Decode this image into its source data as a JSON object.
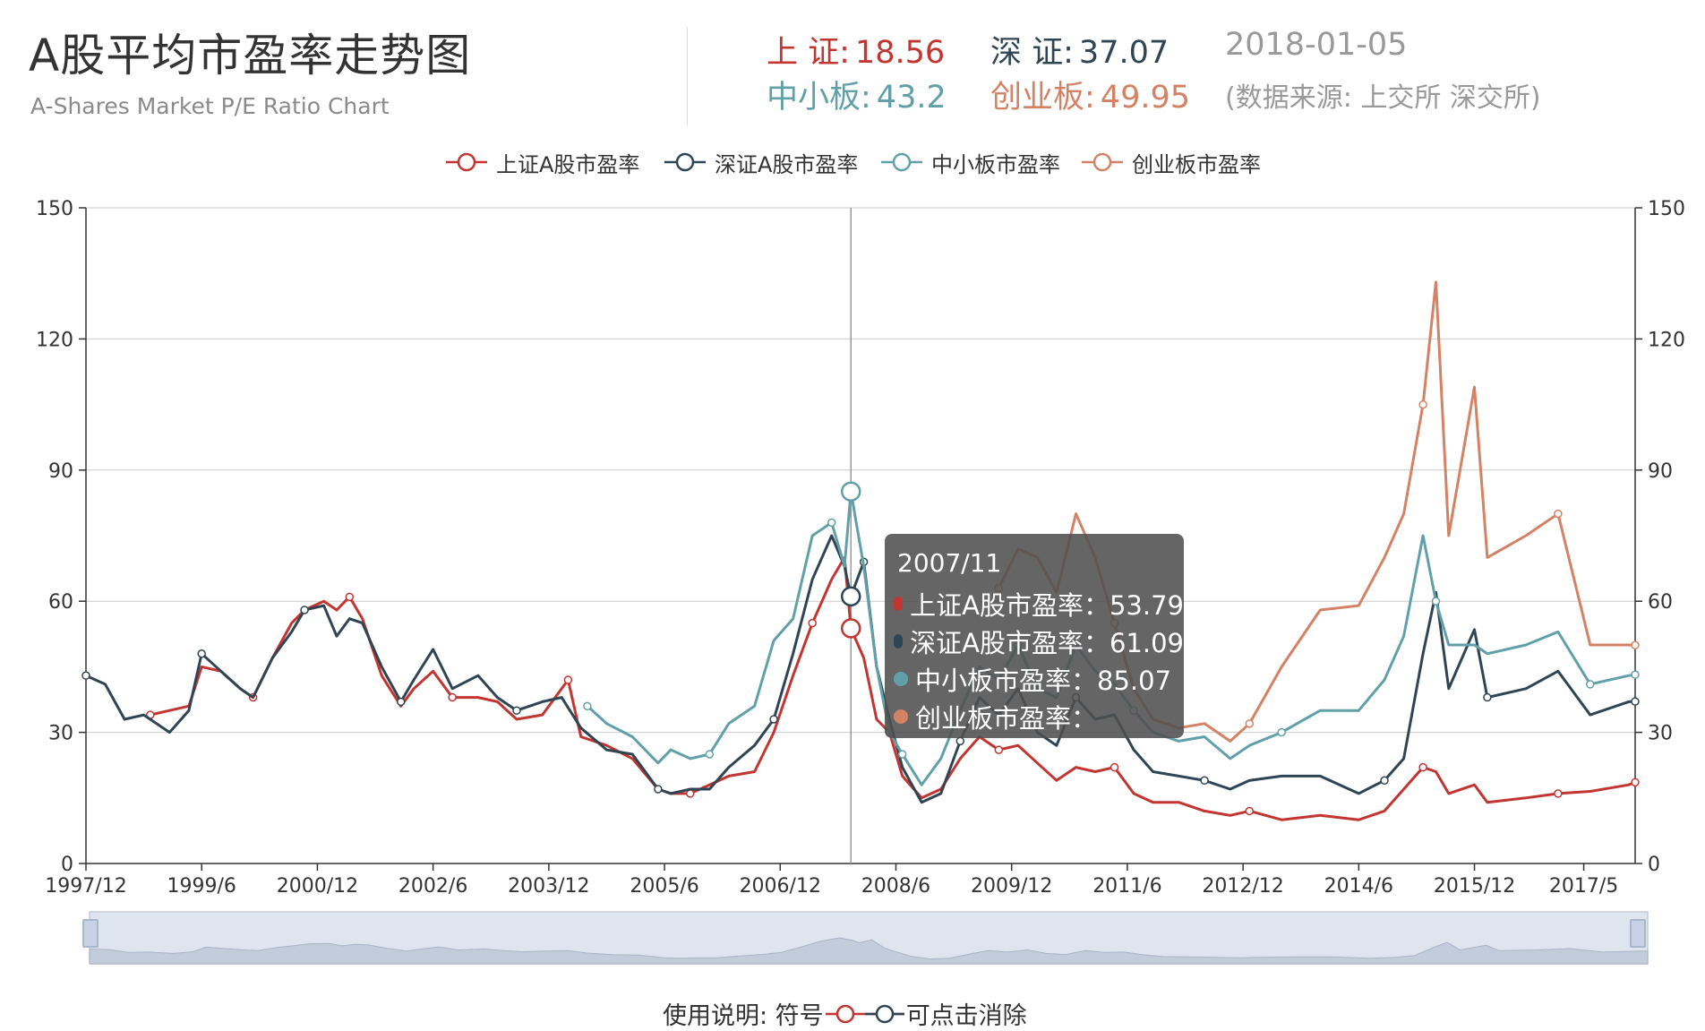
{
  "header": {
    "title": "A股平均市盈率走势图",
    "subtitle": "A-Shares Market P/E Ratio Chart",
    "sh_label": "上 证:",
    "sh_value": "18.56",
    "sz_label": "深 证:",
    "sz_value": "37.07",
    "sme_label": "中小板:",
    "sme_value": "43.2",
    "gem_label": "创业板:",
    "gem_value": "49.95",
    "date": "2018-01-05",
    "source": "(数据来源: 上交所 深交所)"
  },
  "legend": [
    "上证A股市盈率",
    "深证A股市盈率",
    "中小板市盈率",
    "创业板市盈率"
  ],
  "colors": {
    "sh": "#c23531",
    "sz": "#2f4554",
    "sme": "#61a0a8",
    "gem": "#d48265"
  },
  "tooltip": {
    "title": "2007/11",
    "rows": [
      {
        "label": "上证A股市盈率：53.79",
        "color": "#c23531"
      },
      {
        "label": "深证A股市盈率：61.09",
        "color": "#2f4554"
      },
      {
        "label": "中小板市盈率：85.07",
        "color": "#61a0a8"
      },
      {
        "label": "创业板市盈率：",
        "color": "#d48265"
      }
    ]
  },
  "usage": {
    "prefix": "使用说明:  符号",
    "suffix": "可点击消除"
  },
  "chart_data": {
    "type": "line",
    "x_range": [
      "1997/12",
      "2018/01"
    ],
    "x_ticks": [
      "1997/12",
      "1999/6",
      "2000/12",
      "2002/6",
      "2003/12",
      "2005/6",
      "2006/12",
      "2008/6",
      "2009/12",
      "2011/6",
      "2012/12",
      "2014/6",
      "2015/12",
      "2017/5"
    ],
    "ylim": [
      0,
      150
    ],
    "y_ticks": [
      0,
      30,
      60,
      90,
      120,
      150
    ],
    "y_axis_right": true,
    "grid": "horizontal",
    "legend_position": "top-center",
    "cursor_at": "2007/11",
    "series": [
      {
        "name": "上证A股市盈率",
        "points": [
          [
            "1998/10",
            34
          ],
          [
            "1999/1",
            35
          ],
          [
            "1999/4",
            36
          ],
          [
            "1999/6",
            45
          ],
          [
            "1999/9",
            44
          ],
          [
            "1999/12",
            40
          ],
          [
            "2000/2",
            38
          ],
          [
            "2000/5",
            47
          ],
          [
            "2000/8",
            55
          ],
          [
            "2000/10",
            58
          ],
          [
            "2001/1",
            60
          ],
          [
            "2001/3",
            58
          ],
          [
            "2001/5",
            61
          ],
          [
            "2001/7",
            56
          ],
          [
            "2001/10",
            43
          ],
          [
            "2002/1",
            36
          ],
          [
            "2002/3",
            40
          ],
          [
            "2002/6",
            44
          ],
          [
            "2002/9",
            38
          ],
          [
            "2003/1",
            38
          ],
          [
            "2003/4",
            37
          ],
          [
            "2003/7",
            33
          ],
          [
            "2003/11",
            34
          ],
          [
            "2004/2",
            40
          ],
          [
            "2004/3",
            42
          ],
          [
            "2004/5",
            29
          ],
          [
            "2004/9",
            27
          ],
          [
            "2005/1",
            24
          ],
          [
            "2005/5",
            17
          ],
          [
            "2005/7",
            16
          ],
          [
            "2005/10",
            16
          ],
          [
            "2006/1",
            18
          ],
          [
            "2006/4",
            20
          ],
          [
            "2006/8",
            21
          ],
          [
            "2006/11",
            30
          ],
          [
            "2007/2",
            43
          ],
          [
            "2007/5",
            55
          ],
          [
            "2007/8",
            65
          ],
          [
            "2007/10",
            70
          ],
          [
            "2007/11",
            53.8
          ],
          [
            "2008/1",
            47
          ],
          [
            "2008/3",
            33
          ],
          [
            "2008/5",
            30
          ],
          [
            "2008/7",
            20
          ],
          [
            "2008/10",
            15
          ],
          [
            "2009/1",
            17
          ],
          [
            "2009/4",
            24
          ],
          [
            "2009/7",
            29
          ],
          [
            "2009/10",
            26
          ],
          [
            "2010/1",
            27
          ],
          [
            "2010/4",
            23
          ],
          [
            "2010/7",
            19
          ],
          [
            "2010/10",
            22
          ],
          [
            "2011/1",
            21
          ],
          [
            "2011/4",
            22
          ],
          [
            "2011/7",
            16
          ],
          [
            "2011/10",
            14
          ],
          [
            "2012/2",
            14
          ],
          [
            "2012/6",
            12
          ],
          [
            "2012/10",
            11
          ],
          [
            "2013/1",
            12
          ],
          [
            "2013/6",
            10
          ],
          [
            "2013/12",
            11
          ],
          [
            "2014/6",
            10
          ],
          [
            "2014/10",
            12
          ],
          [
            "2015/1",
            17
          ],
          [
            "2015/4",
            22
          ],
          [
            "2015/6",
            21
          ],
          [
            "2015/8",
            16
          ],
          [
            "2015/12",
            18
          ],
          [
            "2016/2",
            14
          ],
          [
            "2016/8",
            15
          ],
          [
            "2017/1",
            16
          ],
          [
            "2017/6",
            16.5
          ],
          [
            "2017/12",
            18
          ],
          [
            "2018/1",
            18.56
          ]
        ]
      },
      {
        "name": "深证A股市盈率",
        "points": [
          [
            "1997/12",
            43
          ],
          [
            "1998/3",
            41
          ],
          [
            "1998/6",
            33
          ],
          [
            "1998/9",
            34
          ],
          [
            "1999/1",
            30
          ],
          [
            "1999/4",
            35
          ],
          [
            "1999/6",
            48
          ],
          [
            "1999/9",
            44
          ],
          [
            "1999/12",
            40
          ],
          [
            "2000/2",
            38
          ],
          [
            "2000/5",
            47
          ],
          [
            "2000/8",
            53
          ],
          [
            "2000/10",
            58
          ],
          [
            "2001/1",
            59
          ],
          [
            "2001/3",
            52
          ],
          [
            "2001/5",
            56
          ],
          [
            "2001/7",
            55
          ],
          [
            "2001/10",
            45
          ],
          [
            "2002/1",
            37
          ],
          [
            "2002/3",
            42
          ],
          [
            "2002/6",
            49
          ],
          [
            "2002/9",
            40
          ],
          [
            "2003/1",
            43
          ],
          [
            "2003/4",
            38
          ],
          [
            "2003/7",
            35
          ],
          [
            "2003/11",
            37
          ],
          [
            "2004/2",
            38
          ],
          [
            "2004/5",
            31
          ],
          [
            "2004/9",
            26
          ],
          [
            "2005/1",
            25
          ],
          [
            "2005/5",
            17
          ],
          [
            "2005/7",
            16
          ],
          [
            "2005/10",
            17
          ],
          [
            "2006/1",
            17
          ],
          [
            "2006/4",
            22
          ],
          [
            "2006/8",
            27
          ],
          [
            "2006/11",
            33
          ],
          [
            "2007/2",
            48
          ],
          [
            "2007/5",
            65
          ],
          [
            "2007/8",
            75
          ],
          [
            "2007/10",
            68
          ],
          [
            "2007/11",
            61.1
          ],
          [
            "2008/1",
            69
          ],
          [
            "2008/3",
            45
          ],
          [
            "2008/5",
            33
          ],
          [
            "2008/7",
            22
          ],
          [
            "2008/10",
            14
          ],
          [
            "2009/1",
            16
          ],
          [
            "2009/4",
            28
          ],
          [
            "2009/7",
            38
          ],
          [
            "2009/10",
            34
          ],
          [
            "2010/1",
            40
          ],
          [
            "2010/4",
            30
          ],
          [
            "2010/7",
            27
          ],
          [
            "2010/10",
            38
          ],
          [
            "2011/1",
            33
          ],
          [
            "2011/4",
            34
          ],
          [
            "2011/7",
            26
          ],
          [
            "2011/10",
            21
          ],
          [
            "2012/2",
            20
          ],
          [
            "2012/6",
            19
          ],
          [
            "2012/10",
            17
          ],
          [
            "2013/1",
            19
          ],
          [
            "2013/6",
            20
          ],
          [
            "2013/12",
            20
          ],
          [
            "2014/6",
            16
          ],
          [
            "2014/10",
            19
          ],
          [
            "2015/1",
            24
          ],
          [
            "2015/4",
            48
          ],
          [
            "2015/6",
            62
          ],
          [
            "2015/8",
            40
          ],
          [
            "2015/12",
            53.5
          ],
          [
            "2016/2",
            38
          ],
          [
            "2016/8",
            40
          ],
          [
            "2017/1",
            44
          ],
          [
            "2017/6",
            34
          ],
          [
            "2017/12",
            37
          ],
          [
            "2018/1",
            37.07
          ]
        ]
      },
      {
        "name": "中小板市盈率",
        "points": [
          [
            "2004/6",
            36
          ],
          [
            "2004/9",
            32
          ],
          [
            "2005/1",
            29
          ],
          [
            "2005/5",
            23
          ],
          [
            "2005/7",
            26
          ],
          [
            "2005/10",
            24
          ],
          [
            "2006/1",
            25
          ],
          [
            "2006/4",
            32
          ],
          [
            "2006/8",
            36
          ],
          [
            "2006/11",
            51
          ],
          [
            "2007/2",
            56
          ],
          [
            "2007/5",
            75
          ],
          [
            "2007/8",
            78
          ],
          [
            "2007/10",
            68
          ],
          [
            "2007/11",
            85.1
          ],
          [
            "2008/1",
            68
          ],
          [
            "2008/3",
            45
          ],
          [
            "2008/5",
            30
          ],
          [
            "2008/7",
            25
          ],
          [
            "2008/10",
            18
          ],
          [
            "2009/1",
            24
          ],
          [
            "2009/4",
            35
          ],
          [
            "2009/7",
            45
          ],
          [
            "2009/10",
            42
          ],
          [
            "2010/1",
            50
          ],
          [
            "2010/4",
            40
          ],
          [
            "2010/7",
            38
          ],
          [
            "2010/10",
            50
          ],
          [
            "2011/1",
            44
          ],
          [
            "2011/4",
            41
          ],
          [
            "2011/7",
            35
          ],
          [
            "2011/10",
            30
          ],
          [
            "2012/2",
            28
          ],
          [
            "2012/6",
            29
          ],
          [
            "2012/10",
            24
          ],
          [
            "2013/1",
            27
          ],
          [
            "2013/6",
            30
          ],
          [
            "2013/12",
            35
          ],
          [
            "2014/6",
            35
          ],
          [
            "2014/10",
            42
          ],
          [
            "2015/1",
            52
          ],
          [
            "2015/4",
            75
          ],
          [
            "2015/6",
            60
          ],
          [
            "2015/8",
            50
          ],
          [
            "2015/12",
            50
          ],
          [
            "2016/2",
            48
          ],
          [
            "2016/8",
            50
          ],
          [
            "2017/1",
            53
          ],
          [
            "2017/6",
            41
          ],
          [
            "2017/12",
            43
          ],
          [
            "2018/1",
            43.2
          ]
        ]
      },
      {
        "name": "创业板市盈率",
        "points": [
          [
            "2009/10",
            63
          ],
          [
            "2010/1",
            72
          ],
          [
            "2010/4",
            70
          ],
          [
            "2010/7",
            62
          ],
          [
            "2010/10",
            80
          ],
          [
            "2011/1",
            70
          ],
          [
            "2011/4",
            55
          ],
          [
            "2011/7",
            40
          ],
          [
            "2011/10",
            33
          ],
          [
            "2012/2",
            31
          ],
          [
            "2012/6",
            32
          ],
          [
            "2012/10",
            28
          ],
          [
            "2013/1",
            32
          ],
          [
            "2013/6",
            45
          ],
          [
            "2013/12",
            58
          ],
          [
            "2014/6",
            59
          ],
          [
            "2014/10",
            70
          ],
          [
            "2015/1",
            80
          ],
          [
            "2015/4",
            105
          ],
          [
            "2015/6",
            133
          ],
          [
            "2015/8",
            75
          ],
          [
            "2015/12",
            109
          ],
          [
            "2016/2",
            70
          ],
          [
            "2016/8",
            75
          ],
          [
            "2017/1",
            80
          ],
          [
            "2017/6",
            50
          ],
          [
            "2017/12",
            50
          ],
          [
            "2018/1",
            49.95
          ]
        ]
      }
    ]
  }
}
